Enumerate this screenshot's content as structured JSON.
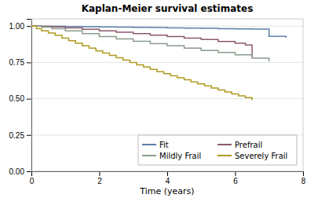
{
  "chart_data": {
    "type": "step",
    "title": "Kaplan-Meier survival estimates",
    "xlabel": "Time (years)",
    "xlim": [
      0,
      8
    ],
    "xticks": [
      0,
      2,
      4,
      6,
      8
    ],
    "ylim": [
      0,
      1.05
    ],
    "yticks": [
      {
        "value": 0.0,
        "label": "0.00"
      },
      {
        "value": 0.25,
        "label": "0.25"
      },
      {
        "value": 0.5,
        "label": "0.50"
      },
      {
        "value": 0.75,
        "label": "0.75"
      },
      {
        "value": 1.0,
        "label": "1.00"
      }
    ],
    "grid": true,
    "legend": "lower right",
    "series": [
      {
        "name": "Fit",
        "color": "#5b7fa6",
        "x": [
          0,
          0.3,
          0.6,
          1.0,
          1.5,
          2.0,
          2.5,
          3.0,
          3.5,
          4.0,
          4.5,
          5.0,
          5.5,
          6.0,
          6.5,
          7.0,
          7.5
        ],
        "values": [
          1.0,
          0.999,
          0.998,
          0.997,
          0.996,
          0.995,
          0.993,
          0.992,
          0.99,
          0.988,
          0.987,
          0.985,
          0.983,
          0.981,
          0.979,
          0.93,
          0.92
        ]
      },
      {
        "name": "Prefrail",
        "color": "#8b5a6a",
        "x": [
          0,
          0.3,
          0.6,
          1.0,
          1.5,
          2.0,
          2.5,
          3.0,
          3.5,
          4.0,
          4.5,
          5.0,
          5.5,
          6.0,
          6.3,
          6.5
        ],
        "values": [
          1.0,
          0.998,
          0.994,
          0.988,
          0.978,
          0.968,
          0.958,
          0.948,
          0.938,
          0.928,
          0.918,
          0.908,
          0.895,
          0.882,
          0.87,
          0.79
        ]
      },
      {
        "name": "Mildly Frail",
        "color": "#8a9a8a",
        "x": [
          0,
          0.3,
          0.6,
          1.0,
          1.5,
          2.0,
          2.5,
          3.0,
          3.5,
          4.0,
          4.5,
          5.0,
          5.5,
          6.0,
          6.5,
          7.0
        ],
        "values": [
          1.0,
          0.993,
          0.983,
          0.968,
          0.948,
          0.928,
          0.912,
          0.896,
          0.88,
          0.864,
          0.848,
          0.832,
          0.818,
          0.802,
          0.78,
          0.758
        ]
      },
      {
        "name": "Severely Frail",
        "color": "#b09a20",
        "x": [
          0,
          0.15,
          0.3,
          0.5,
          0.7,
          0.9,
          1.1,
          1.3,
          1.5,
          1.7,
          1.9,
          2.1,
          2.3,
          2.5,
          2.7,
          2.9,
          3.1,
          3.3,
          3.5,
          3.7,
          3.9,
          4.1,
          4.3,
          4.5,
          4.7,
          4.9,
          5.1,
          5.3,
          5.5,
          5.7,
          5.9,
          6.1,
          6.3,
          6.5
        ],
        "values": [
          1.0,
          0.982,
          0.968,
          0.952,
          0.936,
          0.918,
          0.9,
          0.882,
          0.864,
          0.848,
          0.83,
          0.814,
          0.798,
          0.782,
          0.766,
          0.75,
          0.734,
          0.718,
          0.702,
          0.686,
          0.672,
          0.658,
          0.644,
          0.63,
          0.616,
          0.602,
          0.588,
          0.574,
          0.56,
          0.546,
          0.533,
          0.52,
          0.508,
          0.49
        ]
      }
    ]
  }
}
